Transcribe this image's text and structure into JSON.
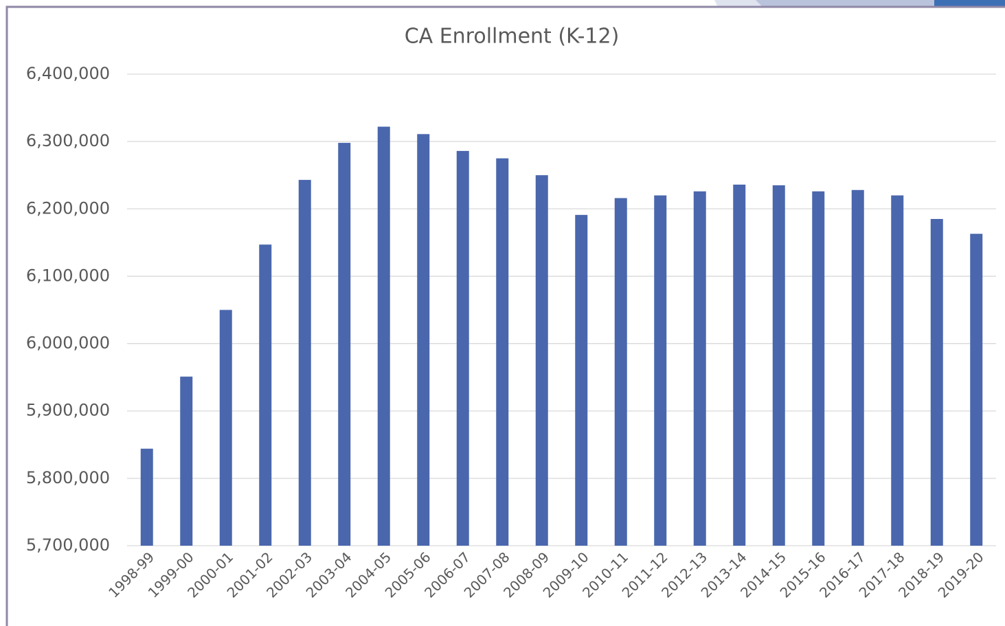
{
  "chart_data": {
    "type": "bar",
    "title": "CA Enrollment (K-12)",
    "categories": [
      "1998-99",
      "1999-00",
      "2000-01",
      "2001-02",
      "2002-03",
      "2003-04",
      "2004-05",
      "2005-06",
      "2006-07",
      "2007-08",
      "2008-09",
      "2009-10",
      "2010-11",
      "2011-12",
      "2012-13",
      "2013-14",
      "2014-15",
      "2015-16",
      "2016-17",
      "2017-18",
      "2018-19",
      "2019-20"
    ],
    "values": [
      5844000,
      5951000,
      6050000,
      6147000,
      6243000,
      6298000,
      6322000,
      6311000,
      6286000,
      6275000,
      6250000,
      6191000,
      6216000,
      6220000,
      6226000,
      6236000,
      6235000,
      6226000,
      6228000,
      6220000,
      6185000,
      6163000
    ],
    "color": "#4a67ad",
    "ylim": [
      5700000,
      6400000
    ],
    "yticks": [
      {
        "value": 5700000,
        "label": "5,700,000"
      },
      {
        "value": 5800000,
        "label": "5,800,000"
      },
      {
        "value": 5900000,
        "label": "5,900,000"
      },
      {
        "value": 6000000,
        "label": "6,000,000"
      },
      {
        "value": 6100000,
        "label": "6,100,000"
      },
      {
        "value": 6200000,
        "label": "6,200,000"
      },
      {
        "value": 6300000,
        "label": "6,300,000"
      },
      {
        "value": 6400000,
        "label": "6,400,000"
      }
    ],
    "grid": true
  }
}
